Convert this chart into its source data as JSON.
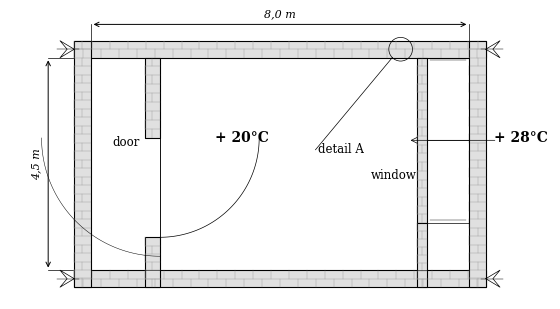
{
  "figsize": [
    5.6,
    3.09
  ],
  "dpi": 100,
  "bg_color": "#ffffff",
  "title_text": "8,0 m",
  "left_label": "4,5 m",
  "inside_temp": "+ 20°C",
  "outside_temp": "+ 28°C",
  "door_label": "door",
  "window_label": "window",
  "detail_label": "detail A",
  "wall_color": "#000000",
  "brick_face": "#e0e0e0",
  "brick_line": "#999999"
}
